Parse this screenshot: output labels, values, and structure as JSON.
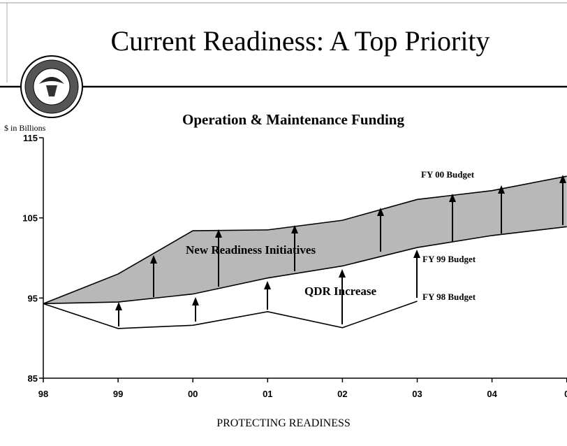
{
  "chart_data": {
    "type": "line",
    "title": "Current Readiness: A Top Priority",
    "subtitle": "Operation & Maintenance Funding",
    "y_label": "$ in Billions",
    "footer": "PROTECTING READINESS",
    "categories": [
      "98",
      "99",
      "00",
      "01",
      "02",
      "03",
      "04",
      "0"
    ],
    "ylim": [
      85,
      115
    ],
    "yticks": [
      85,
      95,
      105,
      115
    ],
    "band_color": "#b8b8b8",
    "series": [
      {
        "name": "FY 98 Budget",
        "color": "#000000",
        "values": [
          94.3,
          91.2,
          91.6,
          93.3,
          91.3,
          94.6,
          null,
          null
        ]
      },
      {
        "name": "FY 99 Budget",
        "color": "#000000",
        "values": [
          94.3,
          94.5,
          95.5,
          97.5,
          99.0,
          101.3,
          102.8,
          103.9
        ]
      },
      {
        "name": "FY 00 Budget",
        "color": "#000000",
        "values": [
          94.3,
          98.0,
          103.4,
          103.5,
          104.7,
          107.3,
          108.4,
          110.2
        ]
      }
    ],
    "annotations": [
      "New Readiness Initiatives",
      "QDR Increase"
    ]
  }
}
